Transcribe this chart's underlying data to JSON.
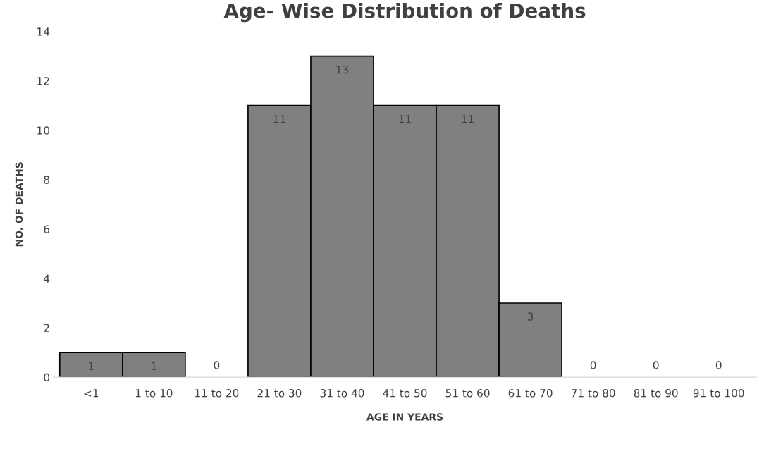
{
  "chart_data": {
    "type": "bar",
    "title": "Age- Wise Distribution of Deaths",
    "xlabel": "AGE IN YEARS",
    "ylabel": "NO. OF DEATHS",
    "categories": [
      "<1",
      "1 to 10",
      "11 to 20",
      "21 to 30",
      "31 to 40",
      "41 to 50",
      "51 to 60",
      "61 to 70",
      "71 to 80",
      "81 to 90",
      "91 to 100"
    ],
    "values": [
      1,
      1,
      0,
      11,
      13,
      11,
      11,
      3,
      0,
      0,
      0
    ],
    "color": "#808080",
    "ylim": [
      0,
      14
    ],
    "yticks": [
      0,
      2,
      4,
      6,
      8,
      10,
      12,
      14
    ],
    "grid": false,
    "data_labels": true
  }
}
